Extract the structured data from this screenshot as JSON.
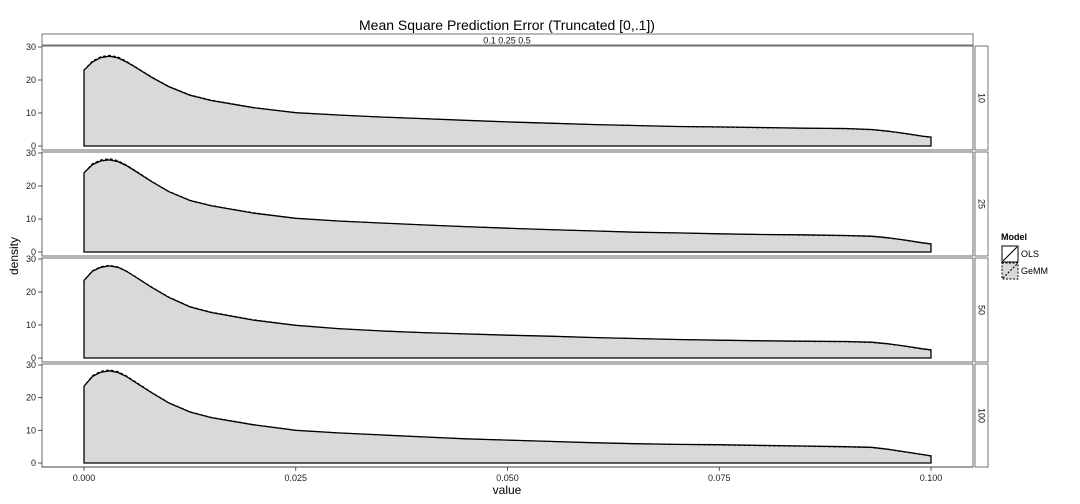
{
  "chart_data": {
    "type": "area",
    "title": "Mean Square Prediction Error (Truncated [0,.1])",
    "xlabel": "value",
    "ylabel": "density",
    "xlim": [
      0,
      0.1
    ],
    "ylim": [
      0,
      30
    ],
    "x_ticks": [
      "0.000",
      "0.025",
      "0.050",
      "0.075",
      "0.100"
    ],
    "y_ticks": [
      "0",
      "10",
      "20",
      "30"
    ],
    "column_strip": "0.1 0.25 0.5",
    "legend": {
      "title": "Model",
      "entries": [
        "OLS",
        "GeMM"
      ]
    },
    "facets": [
      {
        "label": "10",
        "series": [
          {
            "name": "OLS",
            "x": [
              0,
              0.001,
              0.002,
              0.003,
              0.004,
              0.005,
              0.006,
              0.008,
              0.01,
              0.0125,
              0.015,
              0.02,
              0.025,
              0.03,
              0.035,
              0.04,
              0.045,
              0.05,
              0.055,
              0.06,
              0.065,
              0.07,
              0.075,
              0.08,
              0.085,
              0.09,
              0.093,
              0.095,
              0.097,
              0.099,
              0.1
            ],
            "y": [
              23,
              25.5,
              26.8,
              27.2,
              26.7,
              25.5,
              24,
              20.8,
              18,
              15.4,
              13.8,
              11.6,
              10.1,
              9.4,
              8.8,
              8.3,
              7.8,
              7.3,
              6.9,
              6.5,
              6.2,
              5.9,
              5.8,
              5.6,
              5.4,
              5.3,
              5.0,
              4.5,
              3.8,
              3.0,
              2.7
            ]
          },
          {
            "name": "GeMM",
            "x": [
              0,
              0.001,
              0.002,
              0.003,
              0.004,
              0.005,
              0.006,
              0.008,
              0.01,
              0.0125,
              0.015,
              0.02,
              0.025,
              0.03,
              0.035,
              0.04,
              0.045,
              0.05,
              0.055,
              0.06,
              0.065,
              0.07,
              0.075,
              0.08,
              0.085,
              0.09,
              0.093,
              0.095,
              0.097,
              0.099,
              0.1
            ],
            "y": [
              23,
              25.8,
              27.1,
              27.5,
              27.0,
              25.7,
              24.1,
              20.9,
              18.1,
              15.5,
              13.9,
              11.7,
              10.1,
              9.4,
              8.8,
              8.3,
              7.8,
              7.3,
              6.9,
              6.5,
              6.2,
              5.9,
              5.7,
              5.5,
              5.4,
              5.2,
              4.9,
              4.4,
              3.7,
              2.9,
              2.6
            ]
          }
        ]
      },
      {
        "label": "25",
        "series": [
          {
            "name": "OLS",
            "x": [
              0,
              0.001,
              0.002,
              0.003,
              0.004,
              0.005,
              0.006,
              0.008,
              0.01,
              0.0125,
              0.015,
              0.02,
              0.025,
              0.03,
              0.035,
              0.04,
              0.045,
              0.05,
              0.055,
              0.06,
              0.065,
              0.07,
              0.075,
              0.08,
              0.085,
              0.09,
              0.093,
              0.095,
              0.097,
              0.099,
              0.1
            ],
            "y": [
              24,
              26.5,
              27.6,
              27.9,
              27.4,
              26.2,
              24.6,
              21.3,
              18.3,
              15.6,
              14.0,
              11.8,
              10.2,
              9.4,
              8.8,
              8.2,
              7.7,
              7.2,
              6.8,
              6.4,
              6.0,
              5.8,
              5.5,
              5.3,
              5.2,
              5.0,
              4.8,
              4.3,
              3.6,
              2.8,
              2.5
            ]
          },
          {
            "name": "GeMM",
            "x": [
              0,
              0.001,
              0.002,
              0.003,
              0.004,
              0.005,
              0.006,
              0.008,
              0.01,
              0.0125,
              0.015,
              0.02,
              0.025,
              0.03,
              0.035,
              0.04,
              0.045,
              0.05,
              0.055,
              0.06,
              0.065,
              0.07,
              0.075,
              0.08,
              0.085,
              0.09,
              0.093,
              0.095,
              0.097,
              0.099,
              0.1
            ],
            "y": [
              24,
              26.8,
              27.9,
              28.3,
              27.7,
              26.4,
              24.8,
              21.4,
              18.4,
              15.7,
              14.1,
              11.9,
              10.2,
              9.4,
              8.8,
              8.2,
              7.7,
              7.2,
              6.8,
              6.4,
              6.0,
              5.8,
              5.5,
              5.3,
              5.1,
              4.9,
              4.7,
              4.2,
              3.5,
              2.7,
              2.4
            ]
          }
        ]
      },
      {
        "label": "50",
        "series": [
          {
            "name": "OLS",
            "x": [
              0,
              0.001,
              0.002,
              0.003,
              0.004,
              0.005,
              0.006,
              0.008,
              0.01,
              0.0125,
              0.015,
              0.02,
              0.025,
              0.03,
              0.035,
              0.04,
              0.045,
              0.05,
              0.055,
              0.06,
              0.065,
              0.07,
              0.075,
              0.08,
              0.085,
              0.09,
              0.093,
              0.095,
              0.097,
              0.099,
              0.1
            ],
            "y": [
              23.5,
              26.3,
              27.5,
              27.9,
              27.5,
              26.3,
              24.7,
              21.4,
              18.4,
              15.5,
              13.8,
              11.5,
              9.9,
              8.9,
              8.2,
              7.7,
              7.3,
              6.9,
              6.6,
              6.2,
              5.9,
              5.6,
              5.4,
              5.2,
              5.1,
              5.0,
              4.8,
              4.3,
              3.6,
              2.8,
              2.5
            ]
          },
          {
            "name": "GeMM",
            "x": [
              0,
              0.001,
              0.002,
              0.003,
              0.004,
              0.005,
              0.006,
              0.008,
              0.01,
              0.0125,
              0.015,
              0.02,
              0.025,
              0.03,
              0.035,
              0.04,
              0.045,
              0.05,
              0.055,
              0.06,
              0.065,
              0.07,
              0.075,
              0.08,
              0.085,
              0.09,
              0.093,
              0.095,
              0.097,
              0.099,
              0.1
            ],
            "y": [
              23.5,
              26.5,
              27.7,
              28.1,
              27.6,
              26.4,
              24.8,
              21.5,
              18.5,
              15.6,
              13.9,
              11.6,
              9.9,
              8.9,
              8.2,
              7.7,
              7.3,
              6.9,
              6.6,
              6.2,
              5.9,
              5.6,
              5.4,
              5.2,
              5.0,
              4.9,
              4.7,
              4.2,
              3.5,
              2.7,
              2.4
            ]
          }
        ]
      },
      {
        "label": "100",
        "series": [
          {
            "name": "OLS",
            "x": [
              0,
              0.001,
              0.002,
              0.003,
              0.004,
              0.005,
              0.006,
              0.008,
              0.01,
              0.0125,
              0.015,
              0.02,
              0.025,
              0.03,
              0.035,
              0.04,
              0.045,
              0.05,
              0.055,
              0.06,
              0.065,
              0.07,
              0.075,
              0.08,
              0.085,
              0.09,
              0.093,
              0.095,
              0.097,
              0.099,
              0.1
            ],
            "y": [
              23.5,
              26.5,
              27.8,
              28.2,
              27.7,
              26.5,
              24.8,
              21.5,
              18.4,
              15.6,
              13.9,
              11.7,
              10.0,
              9.2,
              8.6,
              8.0,
              7.4,
              7.0,
              6.6,
              6.2,
              5.9,
              5.7,
              5.6,
              5.4,
              5.2,
              5.0,
              4.8,
              4.2,
              3.4,
              2.6,
              2.2
            ]
          },
          {
            "name": "GeMM",
            "x": [
              0,
              0.001,
              0.002,
              0.003,
              0.004,
              0.005,
              0.006,
              0.008,
              0.01,
              0.0125,
              0.015,
              0.02,
              0.025,
              0.03,
              0.035,
              0.04,
              0.045,
              0.05,
              0.055,
              0.06,
              0.065,
              0.07,
              0.075,
              0.08,
              0.085,
              0.09,
              0.093,
              0.095,
              0.097,
              0.099,
              0.1
            ],
            "y": [
              23.5,
              26.8,
              28.1,
              28.5,
              28.0,
              26.7,
              25.0,
              21.6,
              18.5,
              15.7,
              14.0,
              11.8,
              10.0,
              9.2,
              8.6,
              8.0,
              7.4,
              7.0,
              6.6,
              6.2,
              5.9,
              5.7,
              5.5,
              5.3,
              5.1,
              4.9,
              4.7,
              4.1,
              3.3,
              2.5,
              2.1
            ]
          }
        ]
      }
    ],
    "colors": {
      "fill": "#d9d9d9",
      "line": "#000000",
      "panel_border": "#444444",
      "strip_border": "#555555",
      "strip_bg": "#ffffff"
    },
    "grid": false,
    "legend_position": "right"
  }
}
